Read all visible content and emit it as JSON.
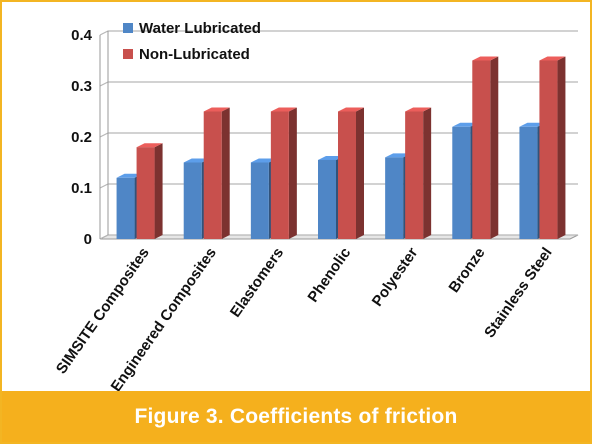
{
  "figure": {
    "caption": "Figure 3. Coefficients of friction"
  },
  "colors": {
    "frame": "#f3b523",
    "caption_bg": "#f5b01d",
    "water": "#4f86c6",
    "non": "#c8504d",
    "grid": "#b8b8b8"
  },
  "chart_data": {
    "type": "bar",
    "categories": [
      "SIMSITE  Composites",
      "Engineered Composites",
      "Elastomers",
      "Phenolic",
      "Polyester",
      "Bronze",
      "Stainless Steel"
    ],
    "series": [
      {
        "name": "Water Lubricated",
        "values": [
          0.12,
          0.15,
          0.15,
          0.155,
          0.16,
          0.22,
          0.22
        ]
      },
      {
        "name": "Non-Lubricated",
        "values": [
          0.18,
          0.25,
          0.25,
          0.25,
          0.25,
          0.35,
          0.35
        ]
      }
    ],
    "y_ticks": [
      "0",
      "0.1",
      "0.2",
      "0.3",
      "0.4"
    ],
    "ylim": [
      0,
      0.4
    ],
    "grid": true,
    "legend_position": "top-left",
    "style": "3d-column"
  }
}
